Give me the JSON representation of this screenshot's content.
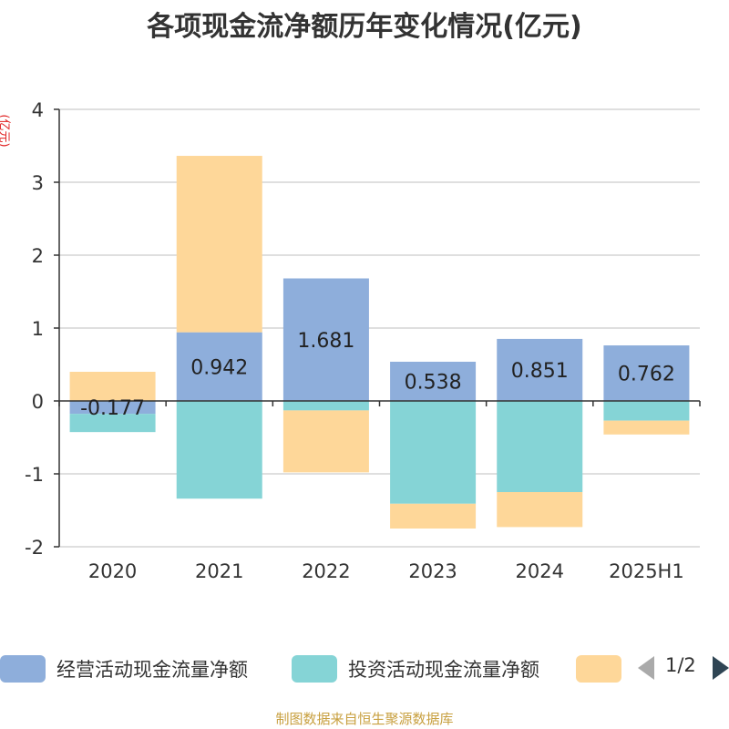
{
  "chart_data": {
    "type": "bar",
    "stacked": true,
    "title": "各项现金流净额历年变化情况(亿元)",
    "ylabel": "(亿元)",
    "categories": [
      "2020",
      "2021",
      "2022",
      "2023",
      "2024",
      "2025H1"
    ],
    "ylim": [
      -2,
      4
    ],
    "yticks": [
      4,
      3,
      2,
      1,
      0,
      -1,
      -2
    ],
    "grid": true,
    "legend_position": "bottom",
    "series": [
      {
        "name": "经营活动现金流量净额",
        "color": "#8eaedb",
        "values": [
          -0.177,
          0.942,
          1.681,
          0.538,
          0.851,
          0.762
        ],
        "labels": [
          "-0.177",
          "0.942",
          "1.681",
          "0.538",
          "0.851",
          "0.762"
        ]
      },
      {
        "name": "投资活动现金流量净额",
        "color": "#85d4d6",
        "values": [
          -0.25,
          -1.34,
          -0.13,
          -1.41,
          -1.25,
          -0.27
        ]
      },
      {
        "name": "",
        "color": "#fed799",
        "values": [
          0.4,
          2.42,
          -0.85,
          -0.34,
          -0.48,
          -0.19
        ]
      }
    ]
  },
  "legend": {
    "items": [
      {
        "label": "经营活动现金流量净额",
        "color": "#8eaedb"
      },
      {
        "label": "投资活动现金流量净额",
        "color": "#85d4d6"
      },
      {
        "label": "",
        "color": "#fed799"
      }
    ],
    "pager": "1/2"
  },
  "footer": "制图数据来自恒生聚源数据库"
}
